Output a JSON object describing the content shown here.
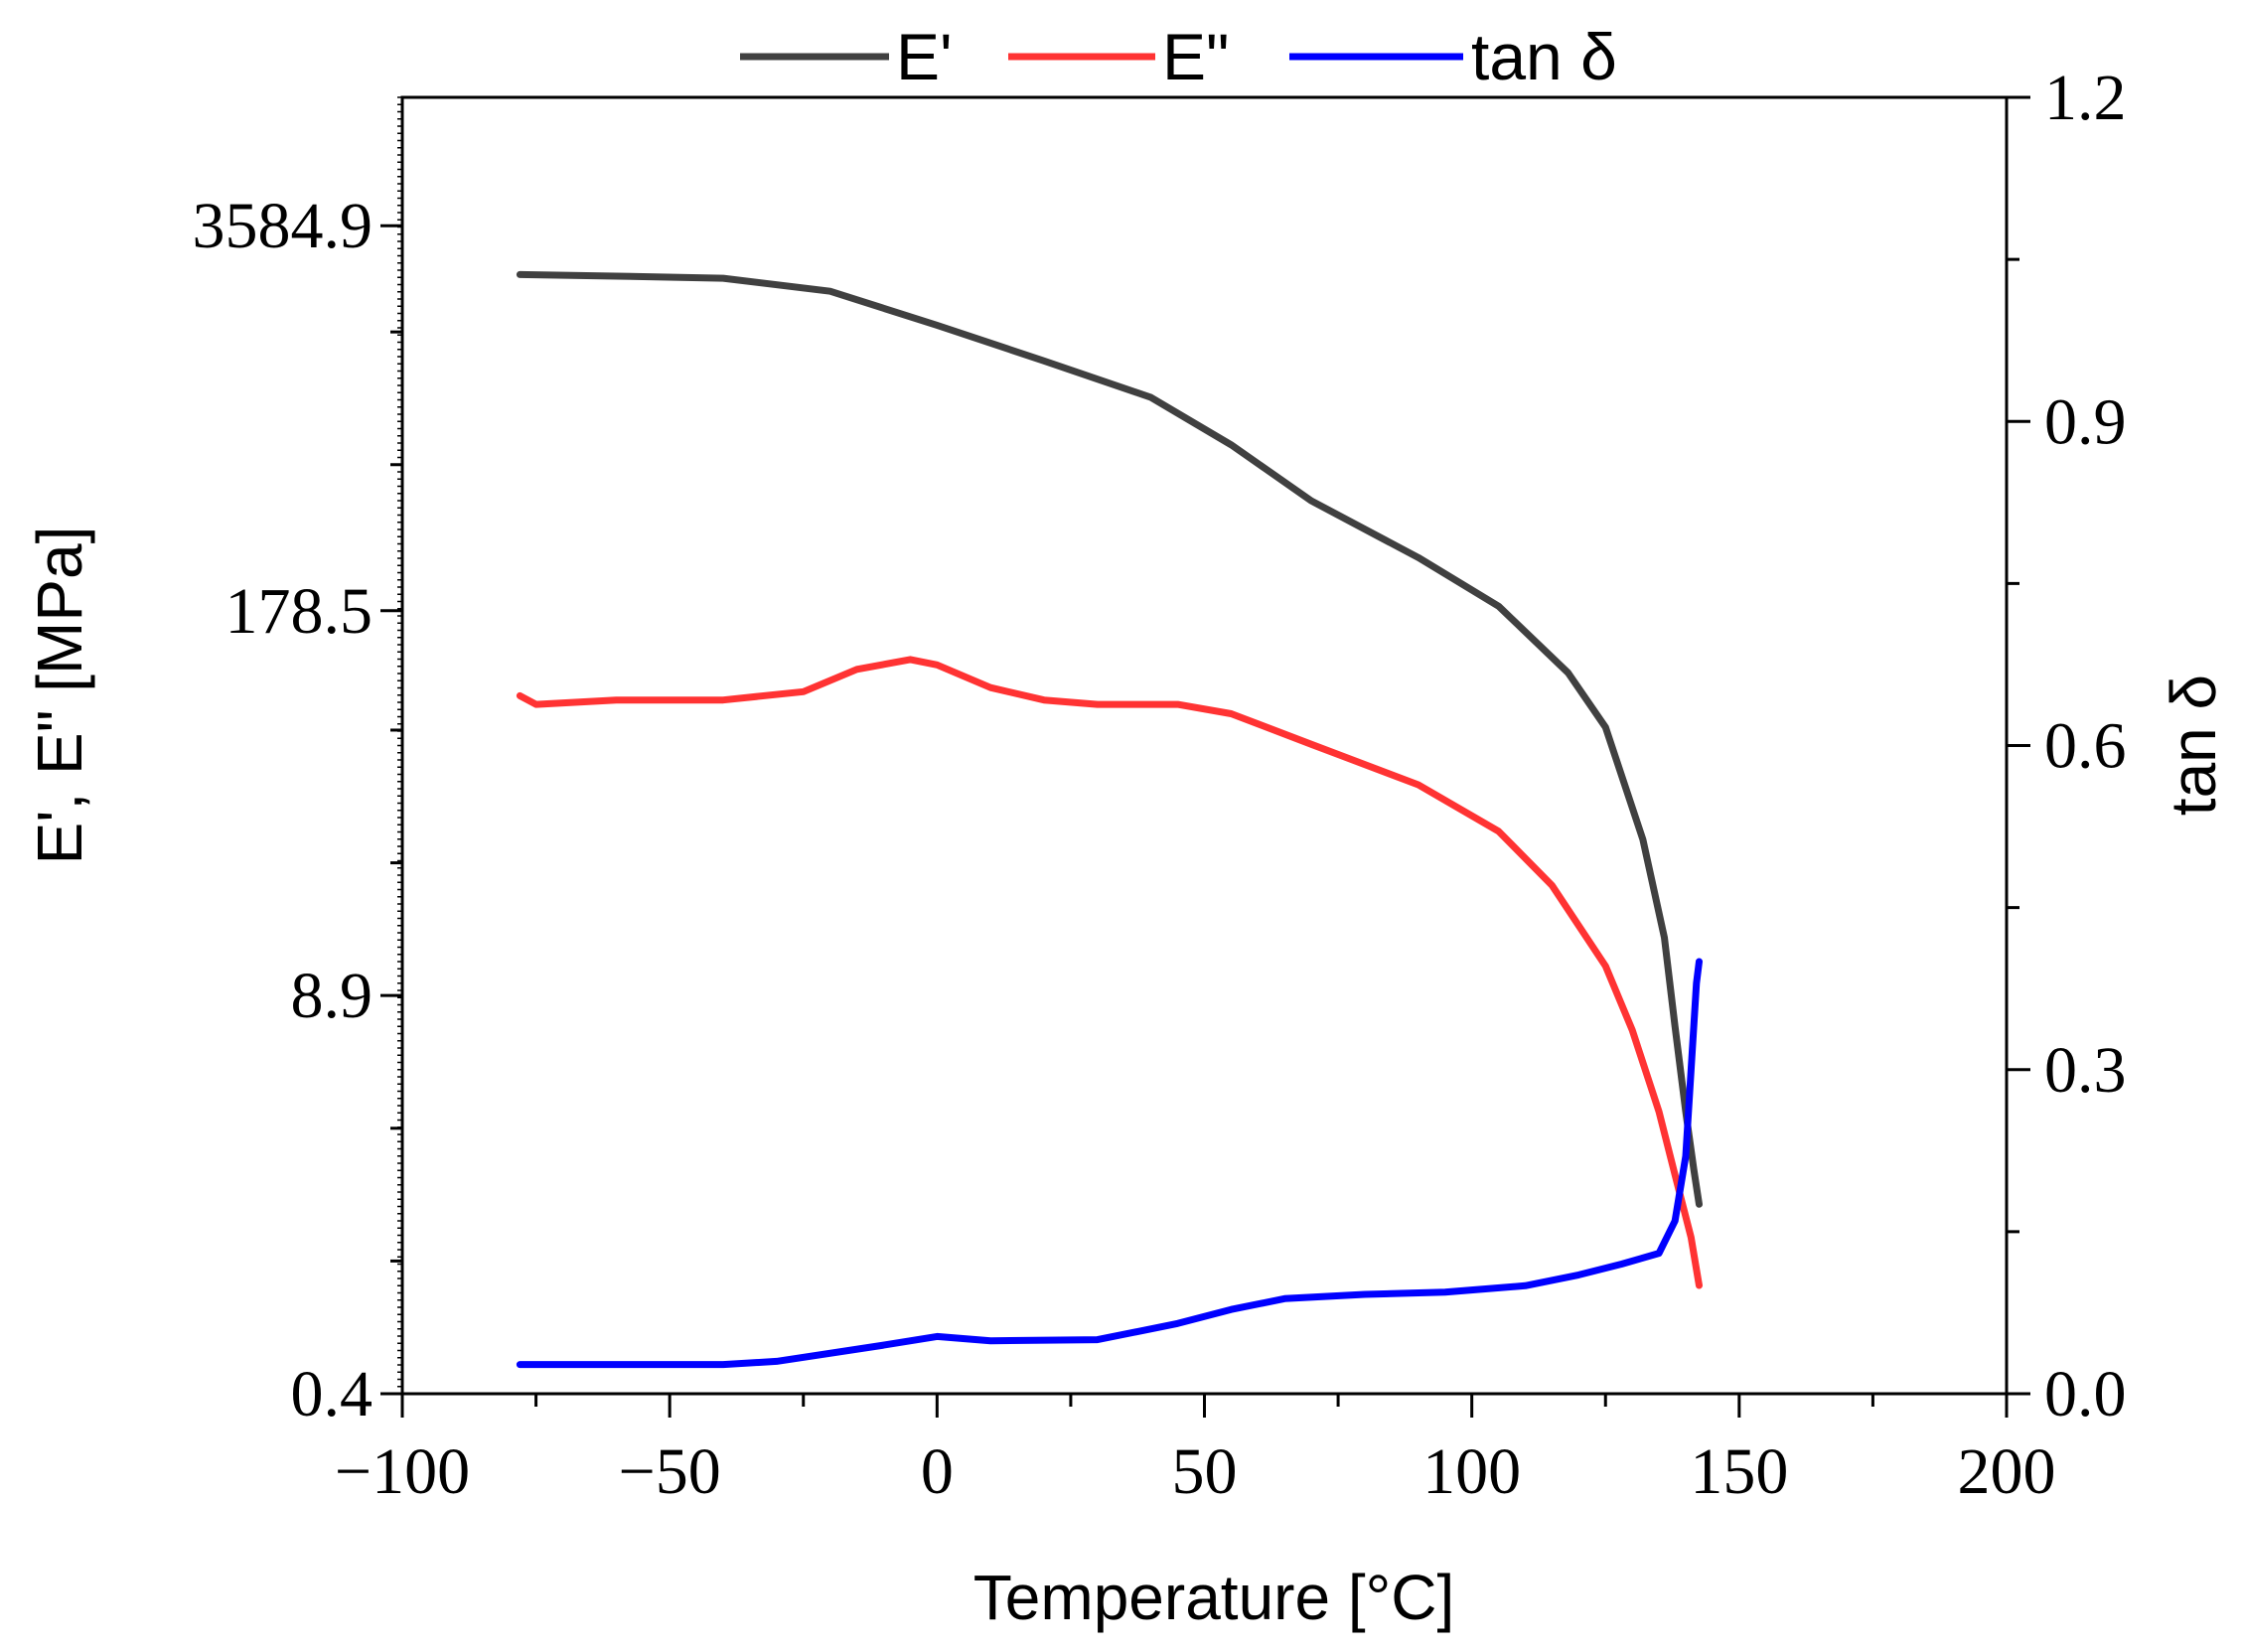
{
  "chart_data": {
    "type": "line",
    "title": "",
    "xlabel": "Temperature [°C]",
    "ylabel_left": "E', E\" [MPa]",
    "ylabel_right": "tan δ",
    "xlim": [
      -100,
      200
    ],
    "x_ticks": [
      -100,
      -50,
      0,
      50,
      100,
      150,
      200
    ],
    "x_tick_labels": [
      "−100",
      "−50",
      "0",
      "50",
      "100",
      "150",
      "200"
    ],
    "y_left_scale": "log",
    "y_left_lim": [
      0.4,
      9744
    ],
    "y_left_ticks": [
      0.4,
      8.9,
      178.5,
      3584.9
    ],
    "y_left_tick_labels": [
      "0.4",
      "8.9",
      "178.5",
      "3584.9"
    ],
    "y_right_lim": [
      0.0,
      1.2
    ],
    "y_right_ticks": [
      0.0,
      0.3,
      0.6,
      0.9,
      1.2
    ],
    "y_right_tick_labels": [
      "0.0",
      "0.3",
      "0.6",
      "0.9",
      "1.2"
    ],
    "legend_position": "top-center",
    "series": [
      {
        "name": "E'",
        "axis": "left",
        "color": "#404040",
        "x": [
          -78,
          -60,
          -40,
          -20,
          0,
          20,
          40,
          55,
          70,
          90,
          105,
          118,
          125,
          132,
          136,
          138,
          140,
          141.5,
          142.5
        ],
        "values": [
          2450,
          2420,
          2380,
          2150,
          1650,
          1250,
          940,
          650,
          420,
          270,
          185,
          110,
          72,
          30,
          14,
          7,
          3.6,
          2.3,
          1.75
        ]
      },
      {
        "name": "E\"",
        "axis": "left",
        "color": "#ff3333",
        "x": [
          -78,
          -75,
          -60,
          -40,
          -25,
          -15,
          -5,
          0,
          10,
          20,
          30,
          45,
          55,
          70,
          90,
          105,
          115,
          125,
          130,
          135,
          138,
          141,
          142.5
        ],
        "values": [
          92,
          86,
          89,
          89,
          95,
          113,
          122,
          117,
          98,
          89,
          86,
          86,
          80,
          63,
          46,
          32,
          21,
          11.2,
          6.8,
          3.6,
          2.2,
          1.35,
          0.93
        ]
      },
      {
        "name": "tan δ",
        "axis": "right",
        "color": "#0000ff",
        "x": [
          -78,
          -40,
          -30,
          -10,
          0,
          10,
          30,
          45,
          55,
          65,
          80,
          95,
          110,
          120,
          128,
          135,
          138,
          140,
          141,
          142,
          142.5
        ],
        "values": [
          0.027,
          0.027,
          0.03,
          0.045,
          0.053,
          0.049,
          0.05,
          0.065,
          0.078,
          0.088,
          0.092,
          0.094,
          0.1,
          0.11,
          0.12,
          0.13,
          0.16,
          0.22,
          0.3,
          0.38,
          0.4
        ]
      }
    ]
  }
}
